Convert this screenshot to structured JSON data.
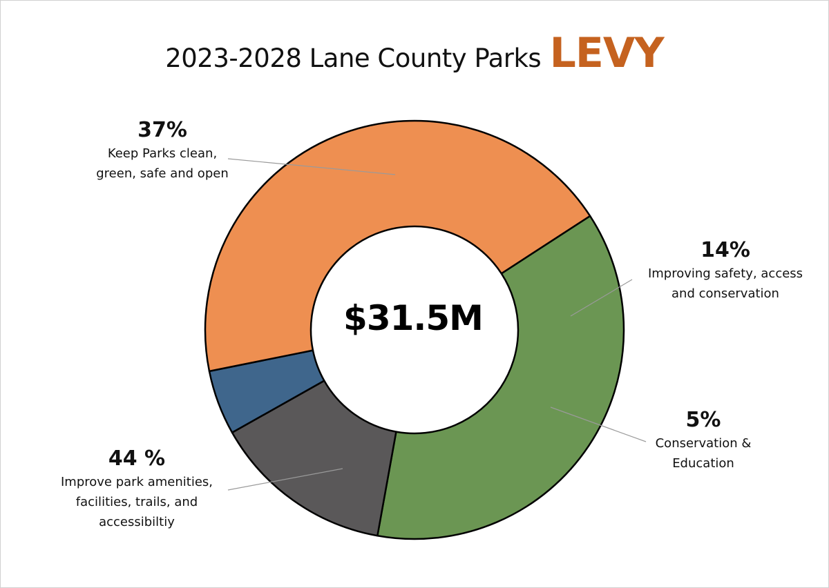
{
  "chart_data": {
    "type": "pie",
    "title": "2023-2028 Lane County Parks",
    "title_highlight": "LEVY",
    "center_label": "$31.5M",
    "categories": [
      "Keep Parks clean, green, safe and open",
      "Improving safety, access and conservation",
      "Conservation & Education",
      "Improve park amenities, facilities, trails, and accessibiltiy"
    ],
    "values": [
      37,
      14,
      5,
      44
    ],
    "value_labels": [
      "37%",
      "14%",
      "5%",
      "44 %"
    ],
    "label_lines": [
      [
        "Keep Parks clean,",
        "green, safe and open"
      ],
      [
        "Improving safety, access",
        "and conservation"
      ],
      [
        "Conservation &",
        "Education"
      ],
      [
        "Improve park amenities,",
        "facilities, trails, and",
        "accessibiltiy"
      ]
    ],
    "colors": [
      "#6b9653",
      "#5a5859",
      "#3f668c",
      "#ee8f51"
    ],
    "highlight_color": "#c5621f",
    "donut": true,
    "legend": "none"
  }
}
